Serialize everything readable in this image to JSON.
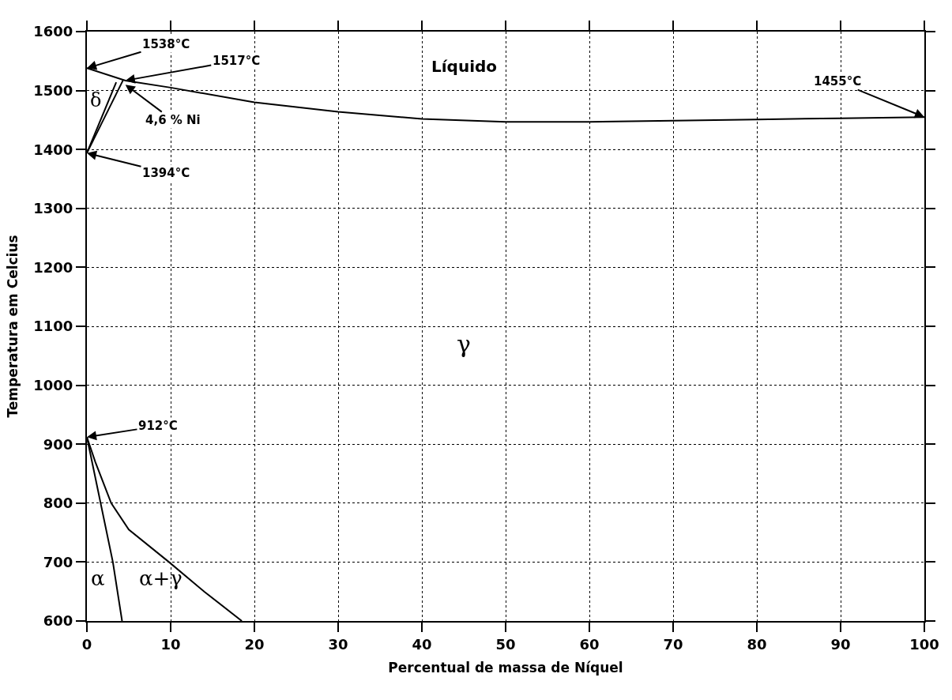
{
  "chart_data": {
    "type": "line",
    "xlabel": "Percentual de massa de Níquel",
    "ylabel": "Temperatura em Celcius",
    "series": [
      {
        "color": "#000000",
        "x": [
          0,
          4.6,
          10,
          20,
          30,
          40,
          50,
          60,
          70,
          80,
          90,
          100
        ],
        "values": [
          1538,
          1517,
          1505,
          1480,
          1464,
          1452,
          1447,
          1447,
          1449,
          1451,
          1453,
          1455
        ]
      },
      {
        "color": "#000000",
        "x": [
          0,
          3.5
        ],
        "values": [
          1394,
          1514
        ]
      },
      {
        "color": "#000000",
        "x": [
          0,
          4.3
        ],
        "values": [
          1394,
          1517
        ]
      },
      {
        "color": "#000000",
        "x": [
          0,
          3.1,
          4.2
        ],
        "values": [
          912,
          700,
          600
        ]
      },
      {
        "color": "#000000",
        "x": [
          0,
          1,
          2.9,
          5,
          9.8,
          14,
          18.5
        ],
        "values": [
          912,
          870,
          800,
          755,
          700,
          650,
          600
        ]
      }
    ],
    "annotations": [
      {
        "text": "1538°C",
        "x": 0,
        "y": 1538
      },
      {
        "text": "1517°C",
        "x": 4.6,
        "y": 1517
      },
      {
        "text": "4,6 % Ni",
        "x": 4.6,
        "y": 1510
      },
      {
        "text": "1394°C",
        "x": 0,
        "y": 1394
      },
      {
        "text": "912°C",
        "x": 0,
        "y": 912
      },
      {
        "text": "1455°C",
        "x": 100,
        "y": 1455
      },
      "Líquido",
      "δ",
      "γ",
      "α",
      "α+γ"
    ],
    "xlim": [
      0,
      100
    ],
    "xticks": [
      0,
      10,
      20,
      30,
      40,
      50,
      60,
      70,
      80,
      90,
      100
    ],
    "ylim": [
      600,
      1600
    ],
    "yticks": [
      600,
      700,
      800,
      900,
      1000,
      1100,
      1200,
      1300,
      1400,
      1500,
      1600
    ],
    "grid": true,
    "marker": "none",
    "line_style": "solid"
  }
}
